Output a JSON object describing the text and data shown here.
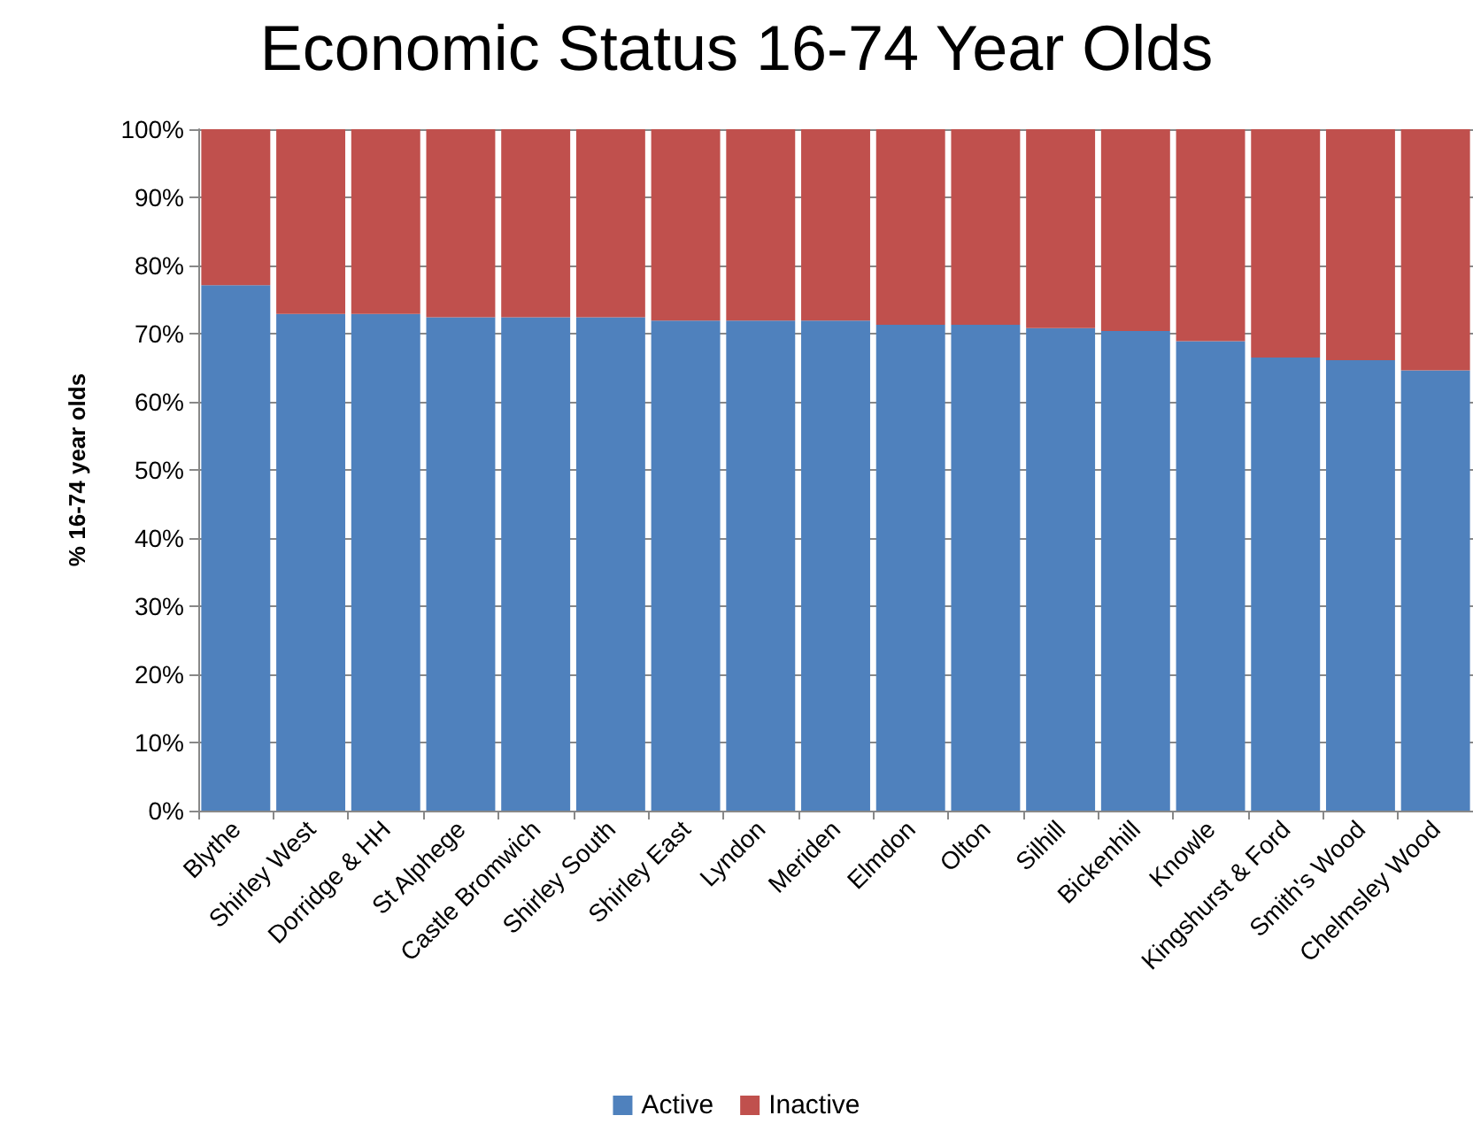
{
  "chart_data": {
    "type": "bar",
    "stacked": true,
    "title": "Economic Status 16-74 Year Olds",
    "ylabel": "% 16-74 year olds",
    "categories": [
      "Blythe",
      "Shirley West",
      "Dorridge & HH",
      "St Alphege",
      "Castle Bromwich",
      "Shirley South",
      "Shirley East",
      "Lyndon",
      "Meriden",
      "Elmdon",
      "Olton",
      "Silhill",
      "Bickenhill",
      "Knowle",
      "Kingshurst & Ford",
      "Smith's Wood",
      "Chelmsley Wood"
    ],
    "series": [
      {
        "name": "Active",
        "color": "#4f81bd",
        "values": [
          77.1,
          72.9,
          72.9,
          72.4,
          72.4,
          72.4,
          71.9,
          71.9,
          71.9,
          71.3,
          71.3,
          70.8,
          70.4,
          68.9,
          66.5,
          66.1,
          64.6
        ]
      },
      {
        "name": "Inactive",
        "color": "#c0504d",
        "values": [
          22.9,
          27.1,
          27.1,
          27.6,
          27.6,
          27.6,
          28.1,
          28.1,
          28.1,
          28.7,
          28.7,
          29.2,
          29.6,
          31.1,
          33.5,
          33.9,
          35.4
        ]
      }
    ],
    "ylim": [
      0,
      100
    ],
    "yticks": [
      {
        "value": 0,
        "label": "0%"
      },
      {
        "value": 10,
        "label": "10%"
      },
      {
        "value": 20,
        "label": "20%"
      },
      {
        "value": 30,
        "label": "30%"
      },
      {
        "value": 40,
        "label": "40%"
      },
      {
        "value": 50,
        "label": "50%"
      },
      {
        "value": 60,
        "label": "60%"
      },
      {
        "value": 70,
        "label": "70%"
      },
      {
        "value": 80,
        "label": "80%"
      },
      {
        "value": 90,
        "label": "90%"
      },
      {
        "value": 100,
        "label": "100%"
      }
    ],
    "grid": "y",
    "legend": "bottom"
  }
}
